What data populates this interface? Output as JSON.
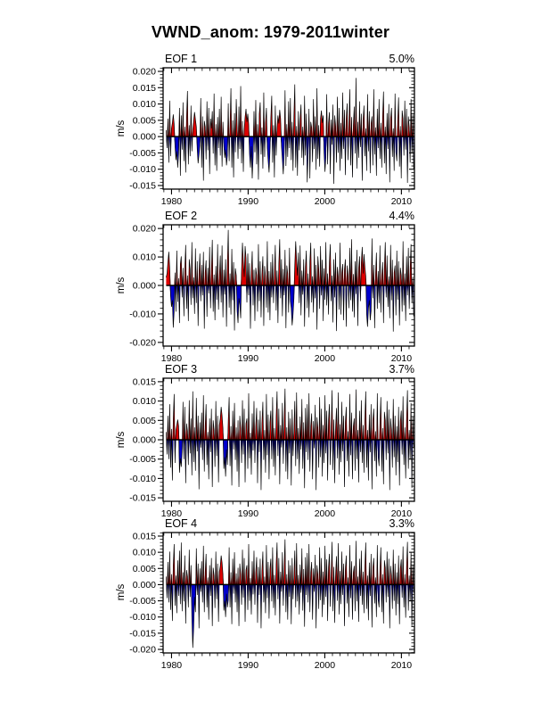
{
  "title": "VWND_anom: 1979-2011winter",
  "chart_data": {
    "type": "area",
    "title": "VWND_anom: 1979-2011winter",
    "description": "Four stacked EOF principal-component time series; positive anomalies filled red, negative filled blue, curve drawn in black over a zero line",
    "colors": {
      "positive_fill": "#dd0000",
      "negative_fill": "#0000cc",
      "line": "#000000",
      "axis": "#000000"
    },
    "value_scale": 0.0001,
    "x_axis": {
      "range": [
        1978.9,
        2011.7
      ],
      "tick_values": [
        1980,
        1990,
        2000,
        2010
      ],
      "tick_labels": [
        "1980",
        "1990",
        "2000",
        "2010"
      ],
      "minor_step_years": 1
    },
    "panels": [
      {
        "label": "EOF 1",
        "variance": "5.0%",
        "ylabel": "m/s",
        "y_range": [
          -0.0161,
          0.0211
        ],
        "y_tick_values": [
          0.02,
          0.015,
          0.01,
          0.005,
          0.0,
          -0.005,
          -0.01,
          -0.015
        ],
        "y_tick_labels": [
          "0.020",
          "0.015",
          "0.010",
          "0.005",
          "0.000",
          "-0.005",
          "-0.010",
          "-0.015"
        ],
        "y_minor_step": 0.001,
        "x_start": 1979.3,
        "x_end": 2011.6,
        "values": [
          20,
          -35,
          55,
          -80,
          110,
          -60,
          25,
          42,
          68,
          38,
          -30,
          -72,
          -45,
          -95,
          -52,
          88,
          -120,
          65,
          -40,
          105,
          -75,
          30,
          -110,
          58,
          140,
          -85,
          35,
          -60,
          95,
          -45,
          22,
          48,
          75,
          52,
          30,
          -38,
          -82,
          -55,
          -28,
          118,
          -95,
          62,
          -135,
          48,
          30,
          -70,
          108,
          -42,
          88,
          -115,
          55,
          25,
          78,
          -52,
          132,
          -88,
          38,
          -105,
          60,
          -35,
          85,
          -58,
          122,
          -92,
          45,
          -28,
          -65,
          -40,
          -88,
          -58,
          102,
          -75,
          35,
          148,
          -95,
          50,
          -125,
          72,
          -48,
          115,
          30,
          -68,
          92,
          -38,
          155,
          -82,
          48,
          -108,
          25,
          60,
          85,
          45,
          70,
          38,
          -55,
          -95,
          -30,
          -128,
          -62,
          78,
          -48,
          112,
          -85,
          38,
          -132,
          70,
          105,
          -55,
          28,
          -98,
          135,
          -62,
          42,
          88,
          -35,
          -75,
          -110,
          -45,
          58,
          125,
          -80,
          35,
          -125,
          95,
          -58,
          28,
          65,
          40,
          82,
          55,
          -30,
          -70,
          -115,
          -48,
          142,
          -90,
          38,
          -62,
          108,
          -35,
          118,
          -72,
          45,
          -105,
          62,
          160,
          -95,
          32,
          -120,
          78,
          -42,
          55,
          98,
          -65,
          30,
          -88,
          125,
          -58,
          70,
          -140,
          -52,
          85,
          -128,
          45,
          28,
          -78,
          115,
          -38,
          62,
          -102,
          148,
          -68,
          35,
          -92,
          55,
          80,
          42,
          65,
          -48,
          -108,
          -62,
          130,
          -85,
          40,
          75,
          -115,
          52,
          -25,
          98,
          -145,
          65,
          32,
          -80,
          122,
          -50,
          88,
          -105,
          42,
          -68,
          135,
          -38,
          82,
          -118,
          55,
          102,
          -72,
          30,
          145,
          -88,
          60,
          -125,
          35,
          92,
          -52,
          180,
          -98,
          45,
          -65,
          108,
          -32,
          70,
          -135,
          50,
          95,
          -60,
          25,
          -105,
          130,
          -45,
          78,
          -112,
          40,
          62,
          -88,
          145,
          -55,
          28,
          -120,
          85,
          -35,
          115,
          -68,
          42,
          -95,
          60,
          138,
          -82,
          30,
          -115,
          72,
          -38,
          100,
          -140,
          55,
          88,
          -62,
          25,
          -105,
          132,
          -48,
          -75,
          45,
          120,
          -92,
          32,
          -128,
          80,
          55,
          -58,
          110,
          -40,
          85,
          -142,
          62,
          28,
          -80,
          115,
          -52,
          68,
          -100
        ]
      },
      {
        "label": "EOF 2",
        "variance": "4.4%",
        "ylabel": "m/s",
        "y_range": [
          -0.0213,
          0.0213
        ],
        "y_tick_values": [
          0.02,
          0.01,
          0.0,
          -0.01,
          -0.02
        ],
        "y_tick_labels": [
          "0.020",
          "0.010",
          "0.000",
          "-0.010",
          "-0.020"
        ],
        "y_minor_step": 0.002,
        "x_start": 1979.3,
        "x_end": 2011.6,
        "values": [
          28,
          42,
          82,
          118,
          60,
          -38,
          -75,
          -52,
          -148,
          -90,
          45,
          -92,
          122,
          -58,
          25,
          -132,
          75,
          102,
          -42,
          62,
          -108,
          50,
          142,
          -82,
          35,
          -125,
          92,
          58,
          -68,
          152,
          -45,
          28,
          -100,
          130,
          -62,
          85,
          -142,
          40,
          112,
          -55,
          72,
          -35,
          118,
          -152,
          45,
          88,
          -110,
          62,
          -28,
          135,
          -80,
          52,
          160,
          -92,
          38,
          -122,
          68,
          -50,
          145,
          -85,
          32,
          105,
          -60,
          140,
          -112,
          55,
          -32,
          92,
          -145,
          70,
          195,
          -78,
          42,
          -102,
          128,
          -52,
          82,
          -158,
          60,
          35,
          -90,
          -132,
          -45,
          -68,
          -115,
          52,
          150,
          82,
          30,
          138,
          95,
          -60,
          112,
          -35,
          78,
          -152,
          42,
          120,
          -70,
          55,
          -125,
          62,
          35,
          -92,
          145,
          -55,
          85,
          -112,
          40,
          102,
          -142,
          68,
          30,
          -78,
          155,
          -95,
          50,
          -122,
          82,
          -42,
          110,
          -62,
          35,
          142,
          -88,
          52,
          -132,
          75,
          162,
          -45,
          92,
          -108,
          58,
          -35,
          125,
          -150,
          70,
          42,
          -95,
          132,
          -55,
          -80,
          -140,
          -102,
          -45,
          72,
          155,
          90,
          35,
          115,
          -62,
          140,
          -105,
          52,
          -32,
          92,
          -145,
          65,
          122,
          -80,
          42,
          -112,
          85,
          150,
          -60,
          32,
          -95,
          130,
          -45,
          72,
          -155,
          102,
          55,
          -82,
          138,
          -35,
          90,
          -125,
          60,
          -50,
          152,
          -70,
          42,
          -102,
          80,
          145,
          -55,
          35,
          -130,
          92,
          -42,
          115,
          -160,
          65,
          32,
          -85,
          150,
          -102,
          45,
          75,
          -122,
          55,
          92,
          -145,
          70,
          35,
          -80,
          132,
          -52,
          162,
          -92,
          40,
          -112,
          85,
          -30,
          125,
          -142,
          62,
          102,
          -55,
          80,
          135,
          42,
          110,
          65,
          32,
          -102,
          -145,
          -80,
          -52,
          -122,
          -90,
          165,
          -45,
          72,
          -150,
          35,
          115,
          -82,
          50,
          -62,
          140,
          -95,
          35,
          82,
          -132,
          60,
          152,
          -42,
          105,
          -75,
          32,
          -115,
          142,
          -52,
          90,
          -162,
          45,
          70,
          -105,
          122,
          -50,
          85,
          -140,
          62,
          35,
          -92,
          155,
          -70,
          42,
          -125,
          102,
          -35,
          132,
          -82,
          55,
          145,
          -60,
          30,
          -108
        ]
      },
      {
        "label": "EOF 3",
        "variance": "3.7%",
        "ylabel": "m/s",
        "y_range": [
          -0.0159,
          0.0159
        ],
        "y_tick_values": [
          0.015,
          0.01,
          0.005,
          0.0,
          -0.005,
          -0.01,
          -0.015
        ],
        "y_tick_labels": [
          "0.015",
          "0.010",
          "0.005",
          "0.000",
          "-0.005",
          "-0.010",
          "-0.015"
        ],
        "y_minor_step": 0.001,
        "x_start": 1979.3,
        "x_end": 2011.6,
        "values": [
          20,
          -38,
          62,
          -50,
          92,
          -72,
          28,
          -105,
          52,
          118,
          -60,
          25,
          38,
          52,
          35,
          -85,
          -48,
          -70,
          -32,
          98,
          -50,
          85,
          -112,
          42,
          22,
          -65,
          102,
          -35,
          55,
          -92,
          125,
          -58,
          32,
          -80,
          108,
          -30,
          62,
          -128,
          45,
          -20,
          70,
          -52,
          115,
          -82,
          35,
          92,
          -65,
          20,
          -102,
          55,
          -32,
          80,
          -122,
          50,
          25,
          -70,
          100,
          -42,
          62,
          -110,
          38,
          55,
          85,
          62,
          30,
          -75,
          -45,
          -95,
          -25,
          -65,
          48,
          110,
          -68,
          35,
          -118,
          75,
          -25,
          95,
          -52,
          32,
          -82,
          50,
          -122,
          62,
          30,
          -60,
          102,
          -38,
          80,
          -110,
          42,
          55,
          -75,
          120,
          -48,
          18,
          -90,
          68,
          -28,
          100,
          -60,
          35,
          82,
          -112,
          52,
          -32,
          75,
          -130,
          42,
          98,
          -52,
          25,
          -85,
          118,
          -40,
          65,
          -102,
          45,
          75,
          -50,
          110,
          -70,
          30,
          -92,
          58,
          125,
          -42,
          80,
          -115,
          38,
          -20,
          95,
          -62,
          48,
          132,
          -82,
          32,
          -102,
          72,
          -35,
          55,
          -118,
          78,
          -42,
          22,
          100,
          -68,
          122,
          -50,
          30,
          -88,
          60,
          -25,
          105,
          -75,
          45,
          -125,
          82,
          -32,
          92,
          -52,
          120,
          -82,
          35,
          68,
          -102,
          48,
          -22,
          90,
          -130,
          58,
          30,
          -72,
          110,
          -45,
          80,
          -95,
          38,
          -60,
          115,
          -35,
          75,
          -105,
          50,
          92,
          -65,
          25,
          128,
          -78,
          52,
          -112,
          32,
          82,
          -48,
          122,
          -90,
          40,
          -58,
          98,
          -30,
          62,
          -122,
          45,
          85,
          -55,
          22,
          -95,
          118,
          -40,
          70,
          -102,
          35,
          55,
          -80,
          130,
          -50,
          25,
          -110,
          75,
          -32,
          102,
          -60,
          38,
          -85,
          52,
          125,
          -72,
          25,
          -105,
          65,
          -32,
          92,
          -128,
          50,
          80,
          -55,
          22,
          -95,
          120,
          -45,
          -68,
          40,
          110,
          -82,
          30,
          -115,
          72,
          50,
          -52,
          100,
          -35,
          78,
          -130,
          55,
          25,
          -72,
          105,
          -45,
          62,
          -92,
          35,
          -58,
          85,
          -118,
          48,
          75,
          -38,
          112,
          -65,
          32,
          -100,
          52,
          128,
          -75,
          25,
          -50,
          95,
          -125,
          60,
          -22
        ]
      },
      {
        "label": "EOF 4",
        "variance": "3.3%",
        "ylabel": "m/s",
        "y_range": [
          -0.0211,
          0.0161
        ],
        "y_tick_values": [
          0.015,
          0.01,
          0.005,
          0.0,
          -0.005,
          -0.01,
          -0.015,
          -0.02
        ],
        "y_tick_labels": [
          "0.015",
          "0.010",
          "0.005",
          "0.000",
          "-0.005",
          "-0.010",
          "-0.015",
          "-0.020"
        ],
        "y_minor_step": 0.001,
        "x_start": 1979.3,
        "x_end": 2011.6,
        "values": [
          25,
          -42,
          70,
          -55,
          102,
          -78,
          32,
          -112,
          58,
          125,
          -65,
          28,
          -88,
          75,
          -35,
          105,
          -60,
          130,
          -82,
          38,
          -52,
          90,
          -120,
          45,
          25,
          -70,
          108,
          -38,
          60,
          -98,
          -195,
          -132,
          -38,
          -85,
          112,
          -32,
          65,
          -135,
          50,
          -22,
          72,
          -55,
          120,
          -85,
          38,
          95,
          -70,
          22,
          -108,
          60,
          -35,
          82,
          -128,
          52,
          28,
          -72,
          102,
          -45,
          65,
          -115,
          40,
          58,
          90,
          68,
          32,
          -80,
          -50,
          -100,
          -28,
          -70,
          -48,
          115,
          -70,
          38,
          -122,
          80,
          -28,
          100,
          -55,
          35,
          -85,
          52,
          -128,
          65,
          32,
          -62,
          108,
          -40,
          82,
          -115,
          45,
          60,
          -78,
          125,
          -50,
          20,
          -92,
          72,
          -30,
          105,
          -62,
          38,
          85,
          -118,
          55,
          -32,
          80,
          -135,
          42,
          102,
          -55,
          25,
          -88,
          122,
          -42,
          70,
          -105,
          48,
          80,
          -52,
          115,
          -72,
          30,
          -95,
          62,
          130,
          -45,
          82,
          -120,
          40,
          -22,
          100,
          -65,
          50,
          140,
          -85,
          32,
          -108,
          75,
          -38,
          60,
          -122,
          82,
          -45,
          25,
          105,
          -70,
          128,
          -52,
          30,
          -92,
          62,
          -25,
          112,
          -80,
          48,
          -130,
          85,
          -32,
          98,
          -55,
          125,
          -85,
          38,
          70,
          -108,
          50,
          -22,
          92,
          -135,
          60,
          30,
          -75,
          115,
          -48,
          82,
          -100,
          40,
          -62,
          120,
          -38,
          78,
          -112,
          52,
          95,
          -68,
          28,
          132,
          -82,
          55,
          -118,
          32,
          88,
          -50,
          128,
          -92,
          42,
          -60,
          102,
          -32,
          65,
          -128,
          48,
          90,
          -58,
          22,
          -100,
          122,
          -42,
          72,
          -108,
          38,
          58,
          -82,
          135,
          -52,
          25,
          -115,
          80,
          -35,
          105,
          -62,
          40,
          -88,
          55,
          130,
          -75,
          28,
          -110,
          68,
          -35,
          95,
          -132,
          52,
          82,
          -58,
          22,
          -100,
          122,
          -48,
          -70,
          42,
          115,
          -85,
          32,
          -120,
          75,
          52,
          -55,
          102,
          -38,
          80,
          -135,
          58,
          28,
          -75,
          108,
          -50,
          65,
          -95,
          38,
          -60,
          90,
          -122,
          50,
          78,
          -40,
          118,
          -70,
          32,
          -102,
          55,
          132,
          -80,
          28,
          -52,
          100,
          -130,
          62,
          -25
        ]
      }
    ]
  }
}
